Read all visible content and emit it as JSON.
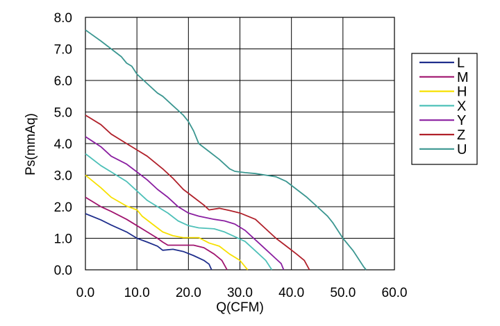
{
  "chart_data": {
    "type": "line",
    "xlabel": "Q(CFM)",
    "ylabel": "Ps(mmAq)",
    "xlim": [
      0,
      60
    ],
    "ylim": [
      0,
      8
    ],
    "x_ticks": [
      "0.0",
      "10.0",
      "20.0",
      "30.0",
      "40.0",
      "50.0",
      "60.0"
    ],
    "y_ticks": [
      "0.0",
      "1.0",
      "2.0",
      "3.0",
      "4.0",
      "5.0",
      "6.0",
      "7.0",
      "8.0"
    ],
    "grid": true,
    "legend_position": "right",
    "series": [
      {
        "name": "L",
        "color": "#1f2e8c",
        "points": [
          [
            0,
            1.78
          ],
          [
            3,
            1.58
          ],
          [
            5,
            1.42
          ],
          [
            8,
            1.2
          ],
          [
            10,
            1.0
          ],
          [
            12,
            0.88
          ],
          [
            14,
            0.75
          ],
          [
            15,
            0.62
          ],
          [
            17,
            0.65
          ],
          [
            19,
            0.58
          ],
          [
            21,
            0.45
          ],
          [
            23,
            0.3
          ],
          [
            24,
            0.18
          ],
          [
            24.5,
            0
          ]
        ]
      },
      {
        "name": "M",
        "color": "#a0146e",
        "points": [
          [
            0,
            2.3
          ],
          [
            3,
            2.0
          ],
          [
            5,
            1.85
          ],
          [
            8,
            1.6
          ],
          [
            10,
            1.4
          ],
          [
            12,
            1.2
          ],
          [
            14,
            1.0
          ],
          [
            15,
            0.88
          ],
          [
            16,
            0.78
          ],
          [
            21,
            0.78
          ],
          [
            23,
            0.7
          ],
          [
            25,
            0.5
          ],
          [
            26.5,
            0.3
          ],
          [
            27.5,
            0
          ]
        ]
      },
      {
        "name": "H",
        "color": "#f7e000",
        "points": [
          [
            0,
            3.0
          ],
          [
            3,
            2.6
          ],
          [
            5,
            2.3
          ],
          [
            8,
            2.02
          ],
          [
            10,
            1.9
          ],
          [
            11,
            1.7
          ],
          [
            13,
            1.45
          ],
          [
            15,
            1.2
          ],
          [
            17,
            1.08
          ],
          [
            19,
            1.02
          ],
          [
            22,
            1.02
          ],
          [
            24,
            0.85
          ],
          [
            26,
            0.75
          ],
          [
            28,
            0.5
          ],
          [
            30,
            0.3
          ],
          [
            31.5,
            0
          ]
        ]
      },
      {
        "name": "X",
        "color": "#4dc0b8",
        "points": [
          [
            0,
            3.68
          ],
          [
            3,
            3.3
          ],
          [
            5,
            3.1
          ],
          [
            8,
            2.8
          ],
          [
            10,
            2.5
          ],
          [
            12,
            2.2
          ],
          [
            14,
            2.0
          ],
          [
            16,
            1.8
          ],
          [
            18,
            1.55
          ],
          [
            20,
            1.4
          ],
          [
            22,
            1.33
          ],
          [
            25,
            1.3
          ],
          [
            27,
            1.2
          ],
          [
            29,
            1.05
          ],
          [
            31,
            0.9
          ],
          [
            33,
            0.6
          ],
          [
            35,
            0.3
          ],
          [
            36,
            0.05
          ],
          [
            36.2,
            0
          ]
        ]
      },
      {
        "name": "Y",
        "color": "#8a1ea0",
        "points": [
          [
            0,
            4.22
          ],
          [
            3,
            3.9
          ],
          [
            5,
            3.6
          ],
          [
            8,
            3.35
          ],
          [
            10,
            3.1
          ],
          [
            12,
            2.85
          ],
          [
            14,
            2.55
          ],
          [
            16,
            2.3
          ],
          [
            18,
            2.0
          ],
          [
            20,
            1.8
          ],
          [
            22,
            1.7
          ],
          [
            25,
            1.6
          ],
          [
            27,
            1.55
          ],
          [
            29,
            1.45
          ],
          [
            31,
            1.25
          ],
          [
            33,
            0.95
          ],
          [
            35,
            0.65
          ],
          [
            37,
            0.35
          ],
          [
            38,
            0.2
          ],
          [
            38.5,
            0
          ]
        ]
      },
      {
        "name": "Z",
        "color": "#b0202a",
        "points": [
          [
            0,
            4.9
          ],
          [
            3,
            4.6
          ],
          [
            5,
            4.3
          ],
          [
            8,
            4.0
          ],
          [
            10,
            3.8
          ],
          [
            12,
            3.6
          ],
          [
            15,
            3.2
          ],
          [
            17,
            2.9
          ],
          [
            19,
            2.55
          ],
          [
            21,
            2.3
          ],
          [
            23,
            2.05
          ],
          [
            24,
            1.9
          ],
          [
            26,
            1.95
          ],
          [
            28,
            1.88
          ],
          [
            30,
            1.8
          ],
          [
            33,
            1.6
          ],
          [
            35,
            1.3
          ],
          [
            37,
            1.0
          ],
          [
            39,
            0.75
          ],
          [
            41,
            0.5
          ],
          [
            42.5,
            0.3
          ],
          [
            43.5,
            0
          ]
        ]
      },
      {
        "name": "U",
        "color": "#3a9690",
        "points": [
          [
            0,
            7.6
          ],
          [
            3,
            7.25
          ],
          [
            5,
            7.0
          ],
          [
            7,
            6.75
          ],
          [
            8,
            6.55
          ],
          [
            9,
            6.45
          ],
          [
            10,
            6.2
          ],
          [
            12,
            5.9
          ],
          [
            14,
            5.6
          ],
          [
            15,
            5.5
          ],
          [
            17,
            5.2
          ],
          [
            19,
            4.9
          ],
          [
            20,
            4.7
          ],
          [
            21,
            4.4
          ],
          [
            22,
            4.0
          ],
          [
            24,
            3.75
          ],
          [
            26,
            3.5
          ],
          [
            28,
            3.2
          ],
          [
            29,
            3.12
          ],
          [
            31,
            3.08
          ],
          [
            33,
            3.05
          ],
          [
            35,
            3.0
          ],
          [
            37,
            2.95
          ],
          [
            39,
            2.8
          ],
          [
            41,
            2.55
          ],
          [
            43,
            2.3
          ],
          [
            45,
            2.0
          ],
          [
            47,
            1.7
          ],
          [
            48,
            1.5
          ],
          [
            50,
            1.0
          ],
          [
            52,
            0.6
          ],
          [
            54,
            0.1
          ],
          [
            54.5,
            0
          ]
        ]
      }
    ]
  }
}
